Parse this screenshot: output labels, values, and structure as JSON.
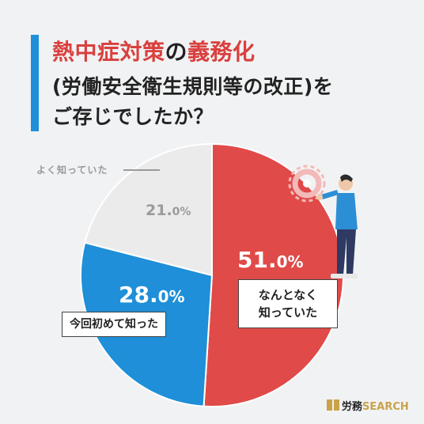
{
  "title": {
    "line1_red1": "熱中症対策",
    "line1_mid": "の",
    "line1_red2": "義務化",
    "line2": "(労働安全衛生規則等の改正)を",
    "line3": "ご存じでしたか？"
  },
  "chart_data": {
    "type": "pie",
    "title": "熱中症対策の義務化(労働安全衛生規則等の改正)をご存じでしたか？",
    "slices": [
      {
        "label": "なんとなく知っていた",
        "value": 51.0,
        "color": "#e04a48"
      },
      {
        "label": "今回初めて知った",
        "value": 28.0,
        "color": "#1e8fd8"
      },
      {
        "label": "よく知っていた",
        "value": 21.0,
        "color": "#ebebeb"
      }
    ],
    "start": "top",
    "direction": "clockwise"
  },
  "labels": {
    "red_pct_main": "51.",
    "red_pct_dec": "0%",
    "blue_pct_main": "28.",
    "blue_pct_dec": "0%",
    "grey_pct_main": "21.",
    "grey_pct_dec": "0%",
    "red_callout_l1": "なんとなく",
    "red_callout_l2": "知っていた",
    "blue_callout": "今回初めて知った",
    "grey_callout": "よく知っていた"
  },
  "logo": {
    "text_jp": "労務",
    "text_en": "SEARCH"
  }
}
